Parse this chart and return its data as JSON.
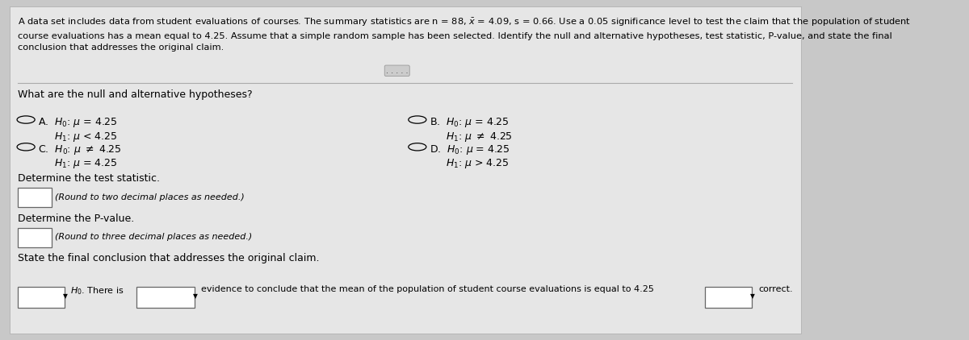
{
  "bg_color": "#c8c8c8",
  "panel_color": "#e8e8e8",
  "font_size_title": 8.2,
  "font_size_body": 9.0,
  "font_size_small": 8.0,
  "question1": "What are the null and alternative hypotheses?",
  "question2": "Determine the test statistic.",
  "hint2": "(Round to two decimal places as needed.)",
  "question3": "Determine the P-value.",
  "hint3": "(Round to three decimal places as needed.)",
  "question4": "State the final conclusion that addresses the original claim.",
  "conclusion_text": "evidence to conclude that the mean of the population of student course evaluations is equal to 4.25",
  "conclusion_suffix": "correct."
}
